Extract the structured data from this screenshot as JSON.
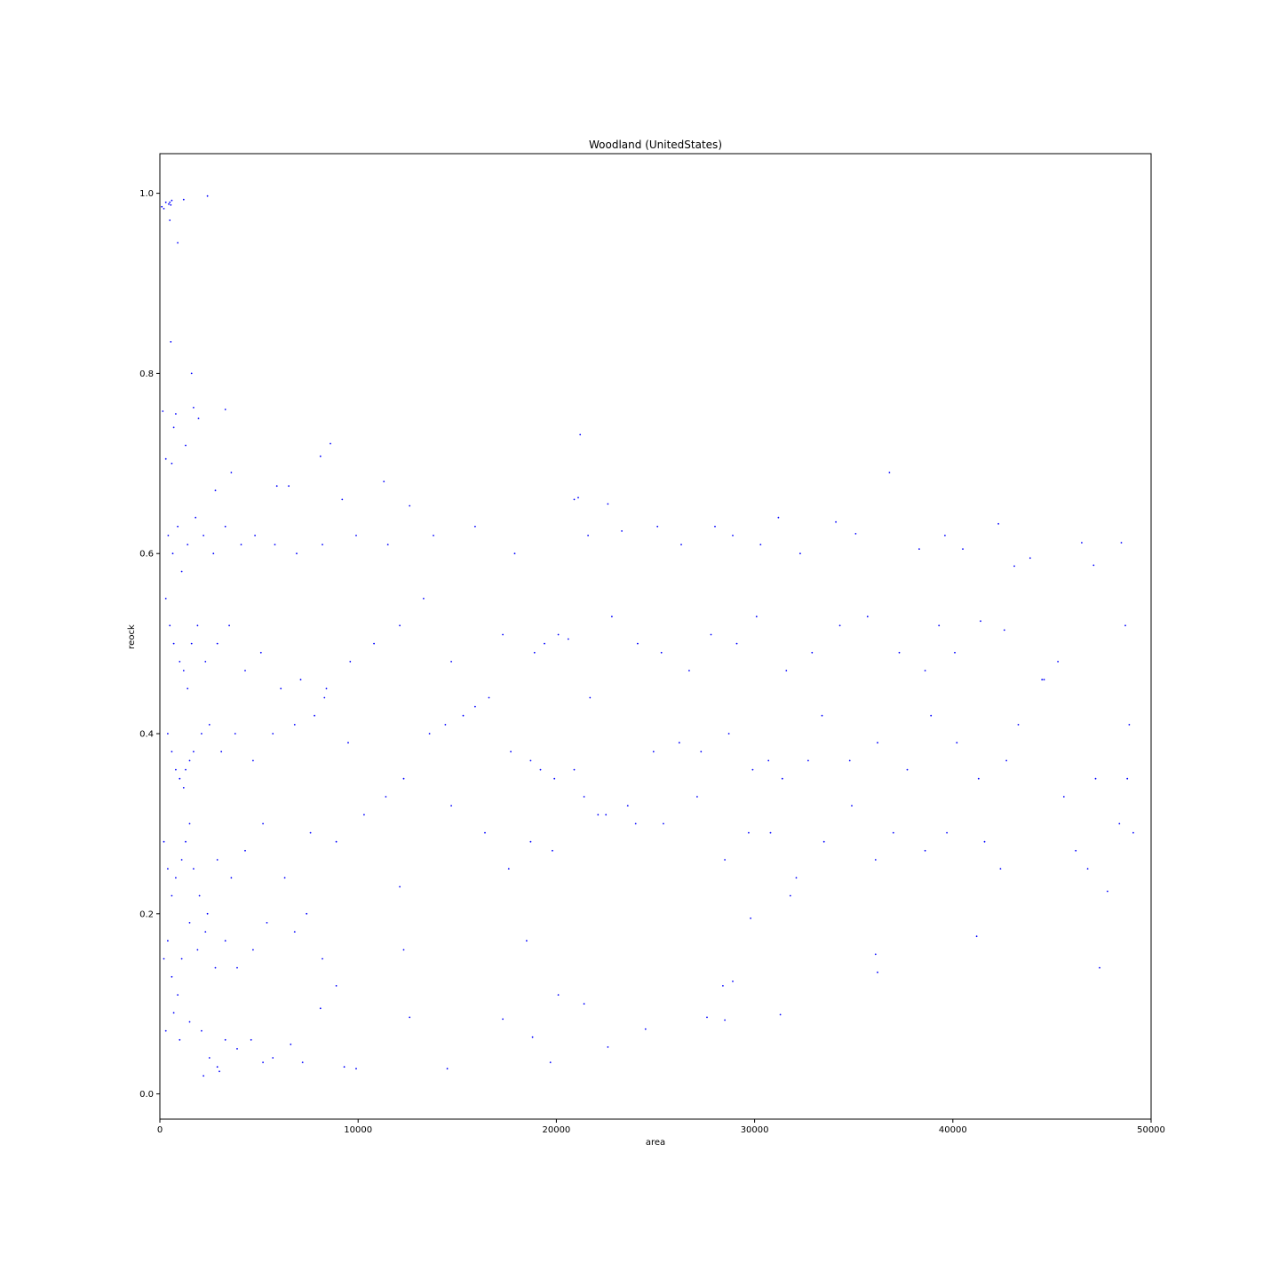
{
  "chart_data": {
    "type": "scatter",
    "title": "Woodland (UnitedStates)",
    "xlabel": "area",
    "ylabel": "reock",
    "xlim": [
      0,
      50000
    ],
    "ylim": [
      -0.028,
      1.044
    ],
    "xticks": [
      0,
      10000,
      20000,
      30000,
      40000,
      50000
    ],
    "xtick_labels": [
      "0",
      "10000",
      "20000",
      "30000",
      "40000",
      "50000"
    ],
    "yticks": [
      0.0,
      0.2,
      0.4,
      0.6,
      0.8,
      1.0
    ],
    "ytick_labels": [
      "0.0",
      "0.2",
      "0.4",
      "0.6",
      "0.8",
      "1.0"
    ],
    "grid": false,
    "legend": "none",
    "point_color": "#0000ff",
    "series": [
      {
        "points": [
          [
            100,
            0.985
          ],
          [
            200,
            0.983
          ],
          [
            300,
            0.99
          ],
          [
            450,
            0.988
          ],
          [
            550,
            0.987
          ],
          [
            500,
            0.99
          ],
          [
            600,
            0.992
          ],
          [
            1200,
            0.993
          ],
          [
            2400,
            0.997
          ],
          [
            500,
            0.97
          ],
          [
            900,
            0.945
          ],
          [
            550,
            0.835
          ],
          [
            1600,
            0.8
          ],
          [
            1700,
            0.762
          ],
          [
            1950,
            0.75
          ],
          [
            3300,
            0.76
          ],
          [
            800,
            0.755
          ],
          [
            150,
            0.758
          ],
          [
            700,
            0.74
          ],
          [
            300,
            0.705
          ],
          [
            600,
            0.7
          ],
          [
            1300,
            0.72
          ],
          [
            2800,
            0.67
          ],
          [
            3600,
            0.69
          ],
          [
            8100,
            0.708
          ],
          [
            8600,
            0.722
          ],
          [
            21200,
            0.732
          ],
          [
            36800,
            0.69
          ],
          [
            11300,
            0.68
          ],
          [
            22600,
            0.655
          ],
          [
            12600,
            0.653
          ],
          [
            20900,
            0.66
          ],
          [
            21100,
            0.662
          ],
          [
            6500,
            0.675
          ],
          [
            5900,
            0.675
          ],
          [
            9200,
            0.66
          ],
          [
            420,
            0.62
          ],
          [
            650,
            0.6
          ],
          [
            900,
            0.63
          ],
          [
            1100,
            0.58
          ],
          [
            1400,
            0.61
          ],
          [
            1800,
            0.64
          ],
          [
            2200,
            0.62
          ],
          [
            2700,
            0.6
          ],
          [
            3300,
            0.63
          ],
          [
            4100,
            0.61
          ],
          [
            4800,
            0.62
          ],
          [
            5800,
            0.61
          ],
          [
            6900,
            0.6
          ],
          [
            8200,
            0.61
          ],
          [
            9900,
            0.62
          ],
          [
            11500,
            0.61
          ],
          [
            13800,
            0.62
          ],
          [
            15900,
            0.63
          ],
          [
            17900,
            0.6
          ],
          [
            21600,
            0.62
          ],
          [
            23300,
            0.625
          ],
          [
            25100,
            0.63
          ],
          [
            26300,
            0.61
          ],
          [
            28000,
            0.63
          ],
          [
            28900,
            0.62
          ],
          [
            30300,
            0.61
          ],
          [
            31200,
            0.64
          ],
          [
            32300,
            0.6
          ],
          [
            34100,
            0.635
          ],
          [
            35100,
            0.622
          ],
          [
            38300,
            0.605
          ],
          [
            39600,
            0.62
          ],
          [
            40500,
            0.605
          ],
          [
            42300,
            0.633
          ],
          [
            43100,
            0.586
          ],
          [
            43900,
            0.595
          ],
          [
            46500,
            0.612
          ],
          [
            47100,
            0.587
          ],
          [
            48500,
            0.612
          ],
          [
            300,
            0.55
          ],
          [
            500,
            0.52
          ],
          [
            700,
            0.5
          ],
          [
            1000,
            0.48
          ],
          [
            1200,
            0.47
          ],
          [
            1400,
            0.45
          ],
          [
            1600,
            0.5
          ],
          [
            1900,
            0.52
          ],
          [
            2300,
            0.48
          ],
          [
            2900,
            0.5
          ],
          [
            3500,
            0.52
          ],
          [
            4300,
            0.47
          ],
          [
            5100,
            0.49
          ],
          [
            6100,
            0.45
          ],
          [
            7100,
            0.46
          ],
          [
            8400,
            0.45
          ],
          [
            9600,
            0.48
          ],
          [
            10800,
            0.5
          ],
          [
            12100,
            0.52
          ],
          [
            13300,
            0.55
          ],
          [
            14700,
            0.48
          ],
          [
            15900,
            0.43
          ],
          [
            17300,
            0.51
          ],
          [
            18900,
            0.49
          ],
          [
            19400,
            0.5
          ],
          [
            20100,
            0.51
          ],
          [
            20600,
            0.505
          ],
          [
            21700,
            0.44
          ],
          [
            22800,
            0.53
          ],
          [
            24100,
            0.5
          ],
          [
            25300,
            0.49
          ],
          [
            26700,
            0.47
          ],
          [
            27800,
            0.51
          ],
          [
            29100,
            0.5
          ],
          [
            30100,
            0.53
          ],
          [
            31600,
            0.47
          ],
          [
            32900,
            0.49
          ],
          [
            34300,
            0.52
          ],
          [
            35700,
            0.53
          ],
          [
            37300,
            0.49
          ],
          [
            38600,
            0.47
          ],
          [
            39300,
            0.52
          ],
          [
            40100,
            0.49
          ],
          [
            41400,
            0.525
          ],
          [
            42600,
            0.515
          ],
          [
            44600,
            0.46
          ],
          [
            45300,
            0.48
          ],
          [
            48700,
            0.52
          ],
          [
            400,
            0.4
          ],
          [
            600,
            0.38
          ],
          [
            800,
            0.36
          ],
          [
            1000,
            0.35
          ],
          [
            1200,
            0.34
          ],
          [
            1300,
            0.36
          ],
          [
            1500,
            0.37
          ],
          [
            1700,
            0.38
          ],
          [
            2100,
            0.4
          ],
          [
            2500,
            0.41
          ],
          [
            3100,
            0.38
          ],
          [
            3800,
            0.4
          ],
          [
            4700,
            0.37
          ],
          [
            5700,
            0.4
          ],
          [
            6800,
            0.41
          ],
          [
            7800,
            0.42
          ],
          [
            8300,
            0.44
          ],
          [
            9500,
            0.39
          ],
          [
            11400,
            0.33
          ],
          [
            12300,
            0.35
          ],
          [
            13600,
            0.4
          ],
          [
            14400,
            0.41
          ],
          [
            15300,
            0.42
          ],
          [
            16600,
            0.44
          ],
          [
            17700,
            0.38
          ],
          [
            18700,
            0.37
          ],
          [
            19200,
            0.36
          ],
          [
            19900,
            0.35
          ],
          [
            20900,
            0.36
          ],
          [
            22100,
            0.31
          ],
          [
            23600,
            0.32
          ],
          [
            24900,
            0.38
          ],
          [
            26200,
            0.39
          ],
          [
            27300,
            0.38
          ],
          [
            28700,
            0.4
          ],
          [
            29900,
            0.36
          ],
          [
            30700,
            0.37
          ],
          [
            31400,
            0.35
          ],
          [
            32700,
            0.37
          ],
          [
            33400,
            0.42
          ],
          [
            34800,
            0.37
          ],
          [
            36200,
            0.39
          ],
          [
            37700,
            0.36
          ],
          [
            38900,
            0.42
          ],
          [
            40200,
            0.39
          ],
          [
            41300,
            0.35
          ],
          [
            42700,
            0.37
          ],
          [
            43300,
            0.41
          ],
          [
            44500,
            0.46
          ],
          [
            45600,
            0.33
          ],
          [
            47200,
            0.35
          ],
          [
            48800,
            0.35
          ],
          [
            48900,
            0.41
          ],
          [
            200,
            0.28
          ],
          [
            400,
            0.25
          ],
          [
            600,
            0.22
          ],
          [
            800,
            0.24
          ],
          [
            1100,
            0.26
          ],
          [
            1300,
            0.28
          ],
          [
            1500,
            0.3
          ],
          [
            1700,
            0.25
          ],
          [
            2000,
            0.22
          ],
          [
            2400,
            0.2
          ],
          [
            2900,
            0.26
          ],
          [
            3600,
            0.24
          ],
          [
            4300,
            0.27
          ],
          [
            5200,
            0.3
          ],
          [
            6300,
            0.24
          ],
          [
            7600,
            0.29
          ],
          [
            8900,
            0.28
          ],
          [
            10300,
            0.31
          ],
          [
            12100,
            0.23
          ],
          [
            14700,
            0.32
          ],
          [
            16400,
            0.29
          ],
          [
            17600,
            0.25
          ],
          [
            18700,
            0.28
          ],
          [
            19800,
            0.27
          ],
          [
            21400,
            0.33
          ],
          [
            22500,
            0.31
          ],
          [
            24000,
            0.3
          ],
          [
            25400,
            0.3
          ],
          [
            27100,
            0.33
          ],
          [
            28500,
            0.26
          ],
          [
            29700,
            0.29
          ],
          [
            30800,
            0.29
          ],
          [
            32100,
            0.24
          ],
          [
            33500,
            0.28
          ],
          [
            34900,
            0.32
          ],
          [
            36100,
            0.26
          ],
          [
            37000,
            0.29
          ],
          [
            38600,
            0.27
          ],
          [
            39700,
            0.29
          ],
          [
            41600,
            0.28
          ],
          [
            42400,
            0.25
          ],
          [
            46200,
            0.27
          ],
          [
            46800,
            0.25
          ],
          [
            48400,
            0.3
          ],
          [
            49100,
            0.29
          ],
          [
            200,
            0.15
          ],
          [
            400,
            0.17
          ],
          [
            600,
            0.13
          ],
          [
            900,
            0.11
          ],
          [
            1100,
            0.15
          ],
          [
            1500,
            0.19
          ],
          [
            1900,
            0.16
          ],
          [
            2300,
            0.18
          ],
          [
            2800,
            0.14
          ],
          [
            3300,
            0.17
          ],
          [
            3900,
            0.14
          ],
          [
            4700,
            0.16
          ],
          [
            5400,
            0.19
          ],
          [
            6800,
            0.18
          ],
          [
            7400,
            0.2
          ],
          [
            8200,
            0.15
          ],
          [
            8900,
            0.12
          ],
          [
            12300,
            0.16
          ],
          [
            18500,
            0.17
          ],
          [
            28400,
            0.12
          ],
          [
            28900,
            0.125
          ],
          [
            29800,
            0.195
          ],
          [
            31800,
            0.22
          ],
          [
            36100,
            0.155
          ],
          [
            41200,
            0.175
          ],
          [
            47400,
            0.14
          ],
          [
            47800,
            0.225
          ],
          [
            300,
            0.07
          ],
          [
            700,
            0.09
          ],
          [
            1000,
            0.06
          ],
          [
            1500,
            0.08
          ],
          [
            2100,
            0.07
          ],
          [
            2500,
            0.04
          ],
          [
            2900,
            0.03
          ],
          [
            3300,
            0.06
          ],
          [
            3900,
            0.05
          ],
          [
            4600,
            0.06
          ],
          [
            5200,
            0.035
          ],
          [
            5700,
            0.04
          ],
          [
            6600,
            0.055
          ],
          [
            7200,
            0.035
          ],
          [
            8100,
            0.095
          ],
          [
            9300,
            0.03
          ],
          [
            9900,
            0.028
          ],
          [
            12600,
            0.085
          ],
          [
            14500,
            0.028
          ],
          [
            17300,
            0.083
          ],
          [
            18800,
            0.063
          ],
          [
            19700,
            0.035
          ],
          [
            20100,
            0.11
          ],
          [
            21400,
            0.1
          ],
          [
            22600,
            0.052
          ],
          [
            24500,
            0.072
          ],
          [
            27600,
            0.085
          ],
          [
            28500,
            0.082
          ],
          [
            31300,
            0.088
          ],
          [
            36200,
            0.135
          ],
          [
            2200,
            0.02
          ],
          [
            3000,
            0.025
          ]
        ]
      }
    ]
  }
}
